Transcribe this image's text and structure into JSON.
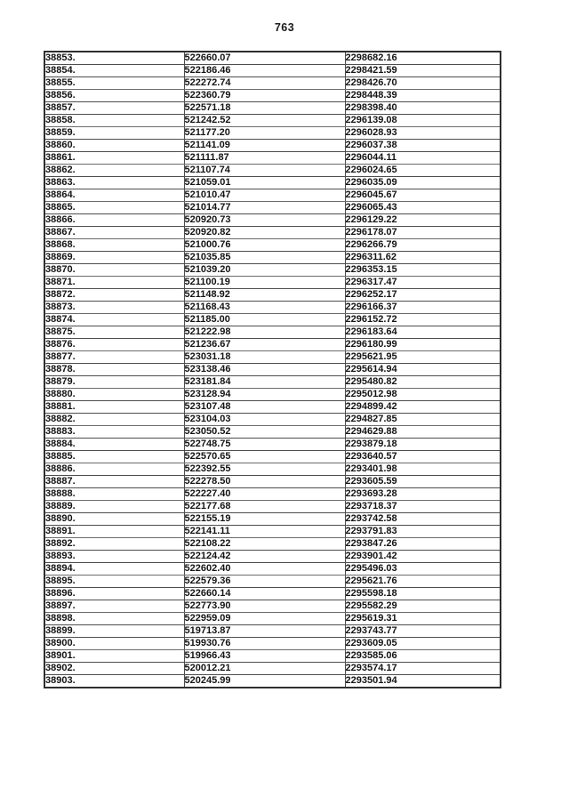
{
  "page": {
    "number": "763"
  },
  "table": {
    "rows": [
      [
        "38853.",
        "522660.07",
        "2298682.16"
      ],
      [
        "38854.",
        "522186.46",
        "2298421.59"
      ],
      [
        "38855.",
        "522272.74",
        "2298426.70"
      ],
      [
        "38856.",
        "522360.79",
        "2298448.39"
      ],
      [
        "38857.",
        "522571.18",
        "2298398.40"
      ],
      [
        "38858.",
        "521242.52",
        "2296139.08"
      ],
      [
        "38859.",
        "521177.20",
        "2296028.93"
      ],
      [
        "38860.",
        "521141.09",
        "2296037.38"
      ],
      [
        "38861.",
        "521111.87",
        "2296044.11"
      ],
      [
        "38862.",
        "521107.74",
        "2296024.65"
      ],
      [
        "38863.",
        "521059.01",
        "2296035.09"
      ],
      [
        "38864.",
        "521010.47",
        "2296045.67"
      ],
      [
        "38865.",
        "521014.77",
        "2296065.43"
      ],
      [
        "38866.",
        "520920.73",
        "2296129.22"
      ],
      [
        "38867.",
        "520920.82",
        "2296178.07"
      ],
      [
        "38868.",
        "521000.76",
        "2296266.79"
      ],
      [
        "38869.",
        "521035.85",
        "2296311.62"
      ],
      [
        "38870.",
        "521039.20",
        "2296353.15"
      ],
      [
        "38871.",
        "521100.19",
        "2296317.47"
      ],
      [
        "38872.",
        "521148.92",
        "2296252.17"
      ],
      [
        "38873.",
        "521168.43",
        "2296166.37"
      ],
      [
        "38874.",
        "521185.00",
        "2296152.72"
      ],
      [
        "38875.",
        "521222.98",
        "2296183.64"
      ],
      [
        "38876.",
        "521236.67",
        "2296180.99"
      ],
      [
        "38877.",
        "523031.18",
        "2295621.95"
      ],
      [
        "38878.",
        "523138.46",
        "2295614.94"
      ],
      [
        "38879.",
        "523181.84",
        "2295480.82"
      ],
      [
        "38880.",
        "523128.94",
        "2295012.98"
      ],
      [
        "38881.",
        "523107.48",
        "2294899.42"
      ],
      [
        "38882.",
        "523104.03",
        "2294827.85"
      ],
      [
        "38883.",
        "523050.52",
        "2294629.88"
      ],
      [
        "38884.",
        "522748.75",
        "2293879.18"
      ],
      [
        "38885.",
        "522570.65",
        "2293640.57"
      ],
      [
        "38886.",
        "522392.55",
        "2293401.98"
      ],
      [
        "38887.",
        "522278.50",
        "2293605.59"
      ],
      [
        "38888.",
        "522227.40",
        "2293693.28"
      ],
      [
        "38889.",
        "522177.68",
        "2293718.37"
      ],
      [
        "38890.",
        "522155.19",
        "2293742.58"
      ],
      [
        "38891.",
        "522141.11",
        "2293791.83"
      ],
      [
        "38892.",
        "522108.22",
        "2293847.26"
      ],
      [
        "38893.",
        "522124.42",
        "2293901.42"
      ],
      [
        "38894.",
        "522602.40",
        "2295496.03"
      ],
      [
        "38895.",
        "522579.36",
        "2295621.76"
      ],
      [
        "38896.",
        "522660.14",
        "2295598.18"
      ],
      [
        "38897.",
        "522773.90",
        "2295582.29"
      ],
      [
        "38898.",
        "522959.09",
        "2295619.31"
      ],
      [
        "38899.",
        "519713.87",
        "2293743.77"
      ],
      [
        "38900.",
        "519930.76",
        "2293609.05"
      ],
      [
        "38901.",
        "519966.43",
        "2293585.06"
      ],
      [
        "38902.",
        "520012.21",
        "2293574.17"
      ],
      [
        "38903.",
        "520245.99",
        "2293501.94"
      ]
    ]
  }
}
